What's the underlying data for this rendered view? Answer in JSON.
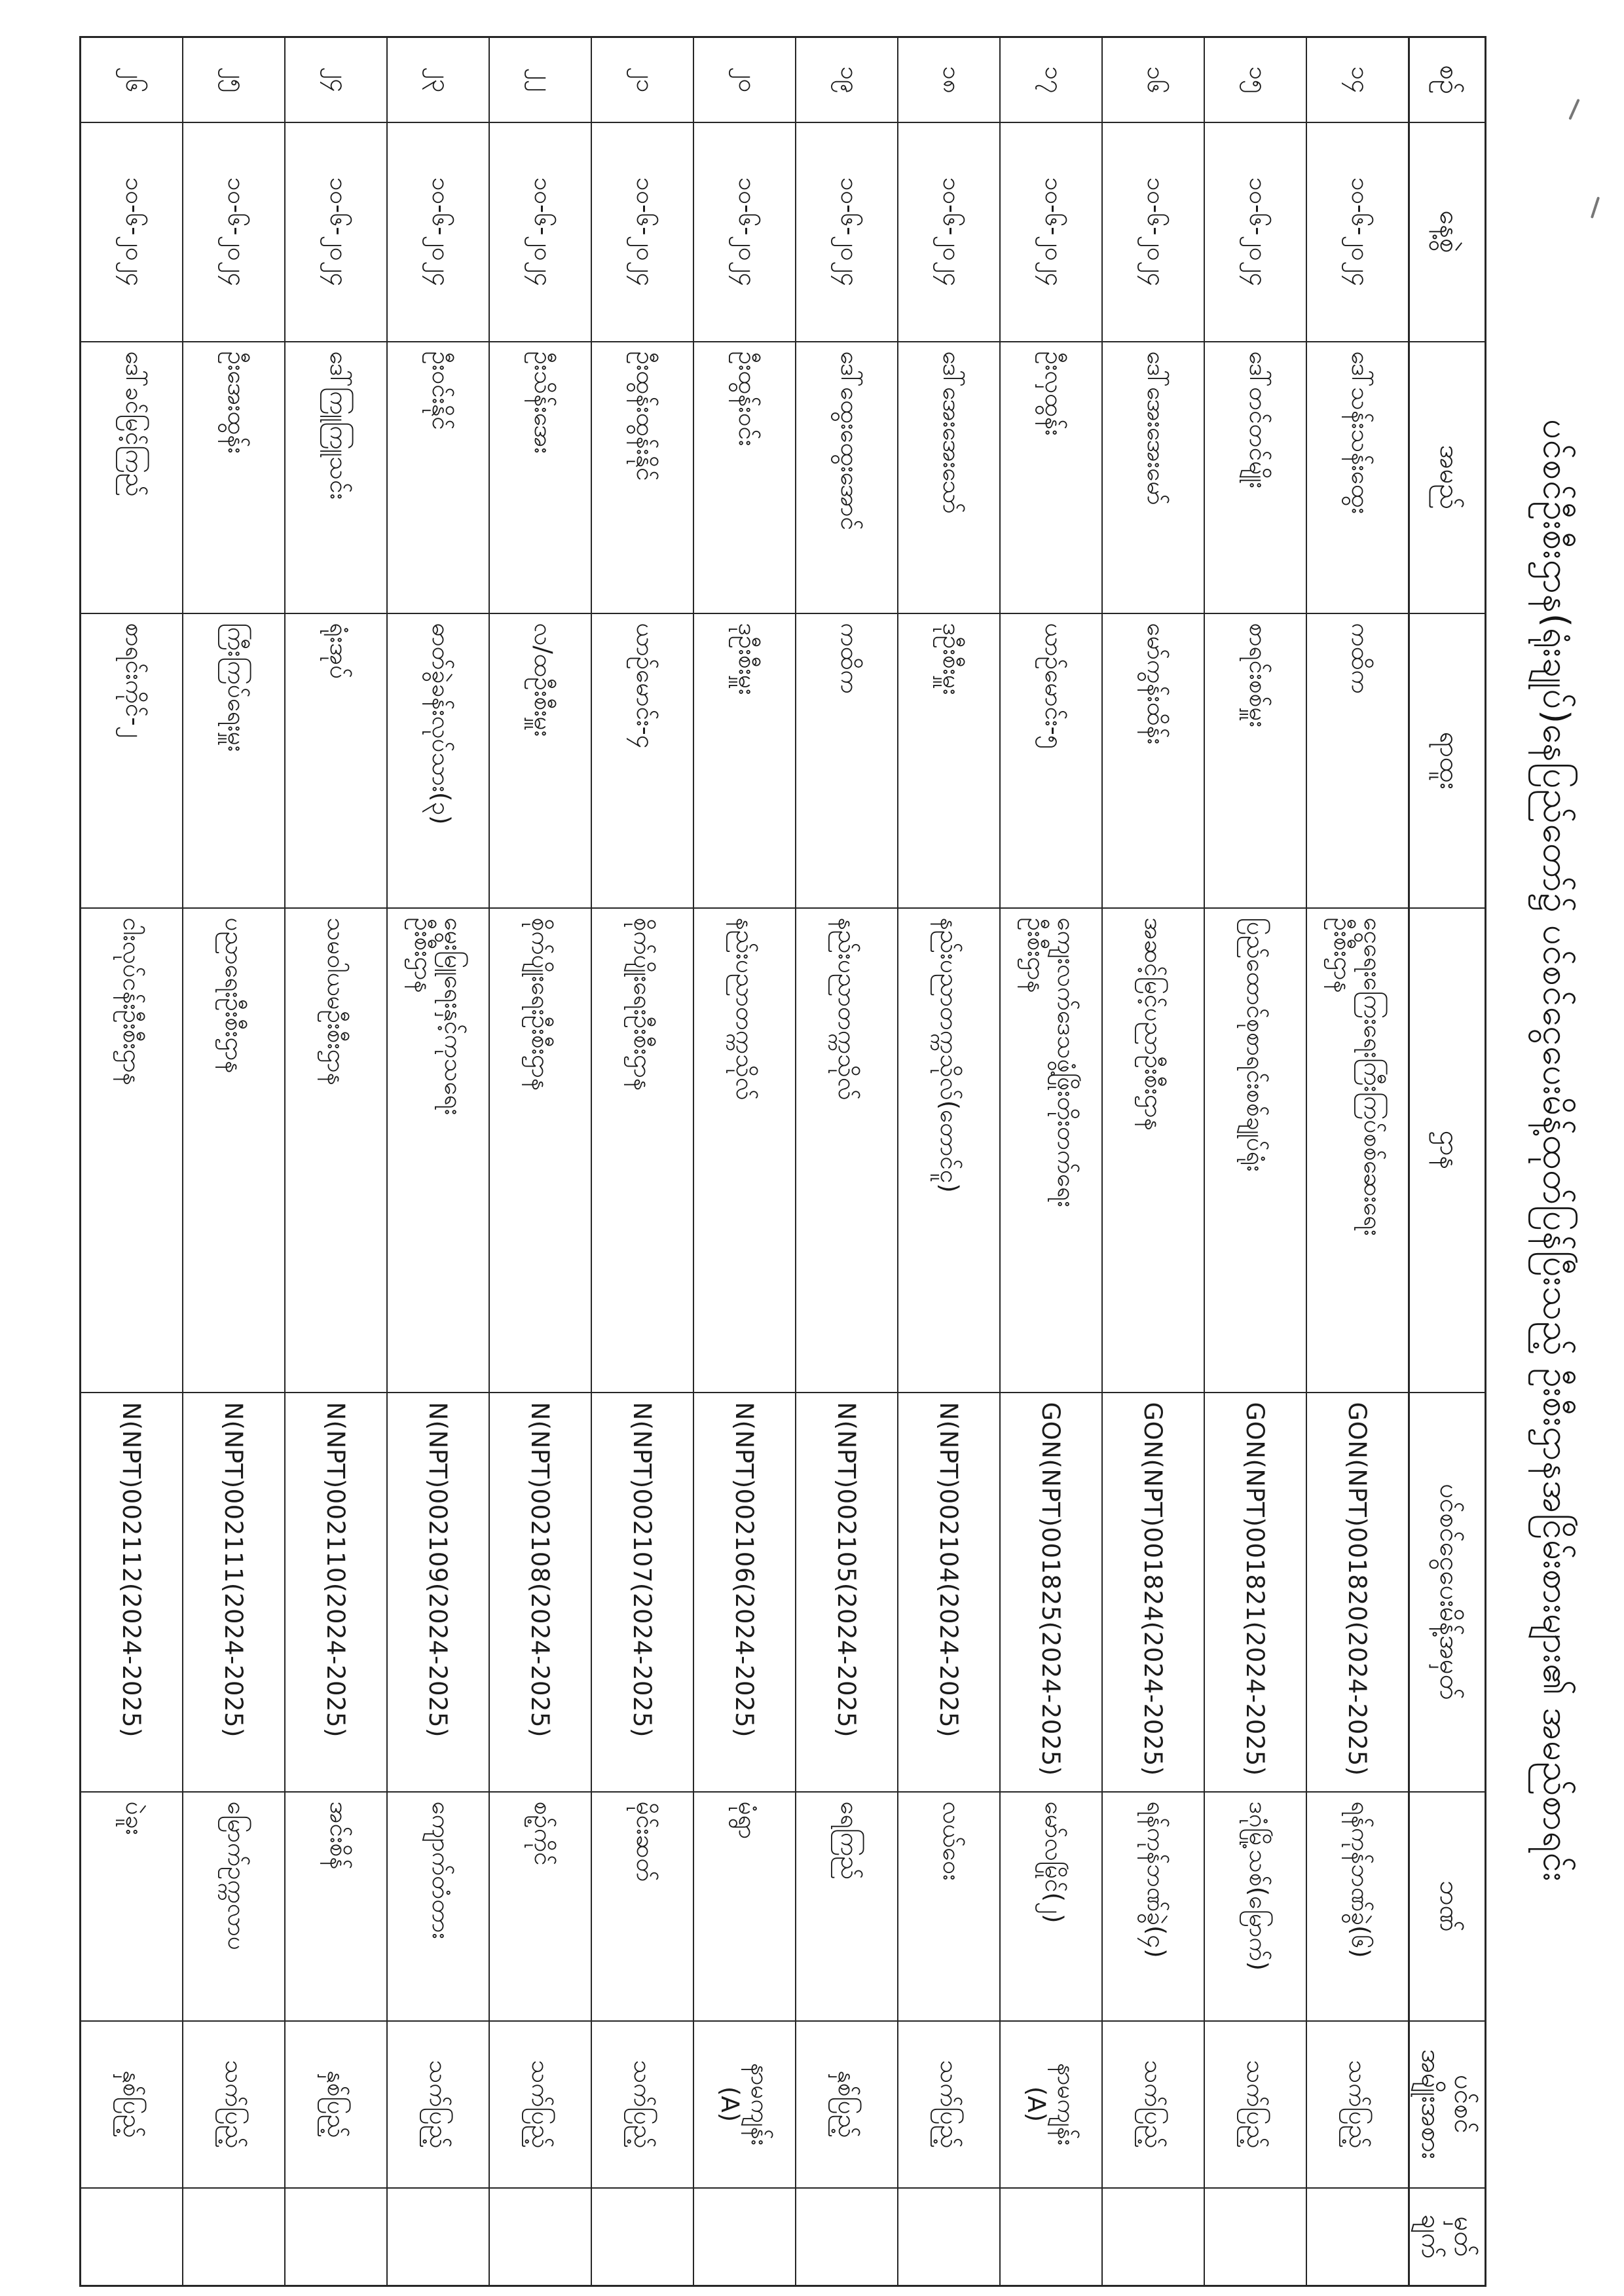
{
  "document": {
    "title": "ပင်စင်ဦးစီးဌာန(ရုံးချုပ်)နေပြည်တော်၌ ပင်စင်ငွေပေးမိန့်ထုတ်ပြန်ပြီးသည့် ဦးစီးဌာနအငြိမ်းစားများ၏ အမည်စာရင်း",
    "orientation_note": "landscape table scanned rotated 90° clockwise on portrait page"
  },
  "table": {
    "headers": {
      "no": "စဉ်",
      "date": "နေ့စွဲ",
      "name": "အမည်",
      "position": "ရာထူး",
      "department": "ဌာန",
      "order_no": "ပင်စင်ငွေပေးမိန့်အမှတ်",
      "bank": "ဘဏ်",
      "pension_type_line1": "ပင်စင်",
      "pension_type_line2": "အမျိုးအစား",
      "remark_line1": "မှတ်",
      "remark_line2": "ချက်"
    },
    "rows": [
      {
        "no": "၁၄",
        "date": "၁၀-၆-၂၀၂၄",
        "name": "ဒေါ်သန်းသန်းထွေး",
        "position": "ကထိက",
        "dept_lines": [
          "ငွေရေးကြေးရေးကြီးကြပ်စစ်ဆေးရေး",
          "ဦးစီးဌာန"
        ],
        "order_no": "GON(NPT)001820(2024-2025)",
        "bank": "ရန်ကုန်ဘဏ်ခွဲ(၆)",
        "type_lines": [
          "သက်ပြည့်"
        ],
        "remark": ""
      },
      {
        "no": "၁၅",
        "date": "၁၀-၆-၂၀၂၄",
        "name": "ဒေါ်တင်တင်မျိုး",
        "position": "စာရင်းစစ်မှူး",
        "dept_lines": [
          "ပြည်ထောင်စုစာရင်းစစ်ချုပ်ရုံး"
        ],
        "order_no": "GON(NPT)001821(2024-2025)",
        "bank": "ဒဂုံမြို့သစ်(မြောက်)",
        "type_lines": [
          "သက်ပြည့်"
        ],
        "remark": ""
      },
      {
        "no": "၁၆",
        "date": "၁၀-၆-၂၀၂၄",
        "name": "ဒေါ်အေးအေးမော်",
        "position": "မော်ကွန်းထိန်း",
        "dept_lines": [
          "အဆင့်မြင့်ပညာဦးစီးဌာန"
        ],
        "order_no": "GON(NPT)001824(2024-2025)",
        "bank": "ရန်ကုန်ဘဏ်ခွဲ(၄)",
        "type_lines": [
          "သက်ပြည့်"
        ],
        "remark": ""
      },
      {
        "no": "၁၇",
        "date": "၁၀-၆-၂၀၂၄",
        "name": "ဦးလှထွန်း",
        "position": "ယာဉ်မောင်း-၅",
        "dept_lines": [
          "ကျေးလက်ဒေသဖွံ့ဖြိုးတိုးတက်ရေး",
          "ဦးစီးဌာန"
        ],
        "order_no": "GON(NPT)001825(2024-2025)",
        "bank": "မော်လမြိုင်(၂)",
        "type_lines": [
          "နာမကျန်း",
          "(A)"
        ],
        "remark": ""
      },
      {
        "no": "၁၈",
        "date": "၁၀-၆-၂၀၂၄",
        "name": "ဒေါ်အေးအေးသော်",
        "position": "ဒုဦးစီးမှူး",
        "dept_lines": [
          "နည်းပညာတက္ကသိုလ်(တောင်ငူ)"
        ],
        "order_no": "N(NPT)002104(2024-2025)",
        "bank": "လယ်ဝေး",
        "type_lines": [
          "သက်ပြည့်"
        ],
        "remark": ""
      },
      {
        "no": "၁၉",
        "date": "၁၀-၆-၂၀၂၄",
        "name": "ဒေါ်ထွေးထွေးအောင်",
        "position": "ကထိက",
        "dept_lines": [
          "နည်းပညာတက္ကသိုလ်"
        ],
        "order_no": "N(NPT)002105(2024-2025)",
        "bank": "ရေကြည်",
        "type_lines": [
          "နှစ်ပြည့်"
        ],
        "remark": ""
      },
      {
        "no": "၂၀",
        "date": "၁၀-၆-၂၀၂၄",
        "name": "ဦးထွန်းဝင်း",
        "position": "ဒုဦးစီးမှူး",
        "dept_lines": [
          "နည်းပညာတက္ကသိုလ်"
        ],
        "order_no": "N(NPT)002106(2024-2025)",
        "bank": "မုံရွာ",
        "type_lines": [
          "နာမကျန်း",
          "(A)"
        ],
        "remark": ""
      },
      {
        "no": "၂၁",
        "date": "၁၀-၆-၂၀၂၄",
        "name": "ဦးထွန်းထွန်းနိုင်",
        "position": "ယာဉ်မောင်း-၄",
        "dept_lines": [
          "စိုက်ပျိုးရေးဦးစီးဌာန"
        ],
        "order_no": "N(NPT)002107(2024-2025)",
        "bank": "မိုင်းဆတ်",
        "type_lines": [
          "သက်ပြည့်"
        ],
        "remark": ""
      },
      {
        "no": "၂၂",
        "date": "၁၀-၆-၂၀၂၄",
        "name": "ဦးသိန်းအေး",
        "position": "လ/ထဦးစီးမှူး",
        "dept_lines": [
          "စိုက်ပျိုးရေးဦးစီးဌာန"
        ],
        "order_no": "N(NPT)002108(2024-2025)",
        "bank": "စဉ့်ကိုင်",
        "type_lines": [
          "သက်ပြည့်"
        ],
        "remark": ""
      },
      {
        "no": "၂၃",
        "date": "၁၀-၆-၂၀၂၄",
        "name": "ဦးဝင်းနိုင်",
        "position": "ဓာတ်ခွဲခန်းလုပ်သား(၃)",
        "dept_lines": [
          "မွေးမြူရေးနှင့်ကုသရေး",
          "ဦးစီးဌာန"
        ],
        "order_no": "N(NPT)002109(2024-2025)",
        "bank": "ကျောက်တံတား",
        "type_lines": [
          "သက်ပြည့်"
        ],
        "remark": ""
      },
      {
        "no": "၂၄",
        "date": "၁၀-၆-၂၀၂၄",
        "name": "ဒေါ်ကြူကြူသင်း",
        "position": "ရုံးအုပ်",
        "dept_lines": [
          "သမဝါယမဦးစီးဌာန"
        ],
        "order_no": "N(NPT)002110(2024-2025)",
        "bank": "အင်းစိန်",
        "type_lines": [
          "နှစ်ပြည့်"
        ],
        "remark": ""
      },
      {
        "no": "၂၅",
        "date": "၁၀-၆-၂၀၂၄",
        "name": "ဦးအေးထွန်း",
        "position": "ကြီးကြပ်ရေးမှူး",
        "dept_lines": [
          "ပညာရေးဦးစီးဌာန"
        ],
        "order_no": "N(NPT)002111(2024-2025)",
        "bank": "မြောက်ဥက္ကလာပ",
        "type_lines": [
          "သက်ပြည့်"
        ],
        "remark": ""
      },
      {
        "no": "၂၆",
        "date": "၁၀-၆-၂၀၂၄",
        "name": "ဒေါ်ခင်မြင့်ကြည်",
        "position": "စာရင်းကိုင်-၂",
        "dept_lines": [
          "ငါးလုပ်ငန်းဦးစီးဌာန"
        ],
        "order_no": "N(NPT)002112(2024-2025)",
        "bank": "ပဲခူး",
        "type_lines": [
          "နှစ်ပြည့်"
        ],
        "remark": ""
      }
    ]
  }
}
